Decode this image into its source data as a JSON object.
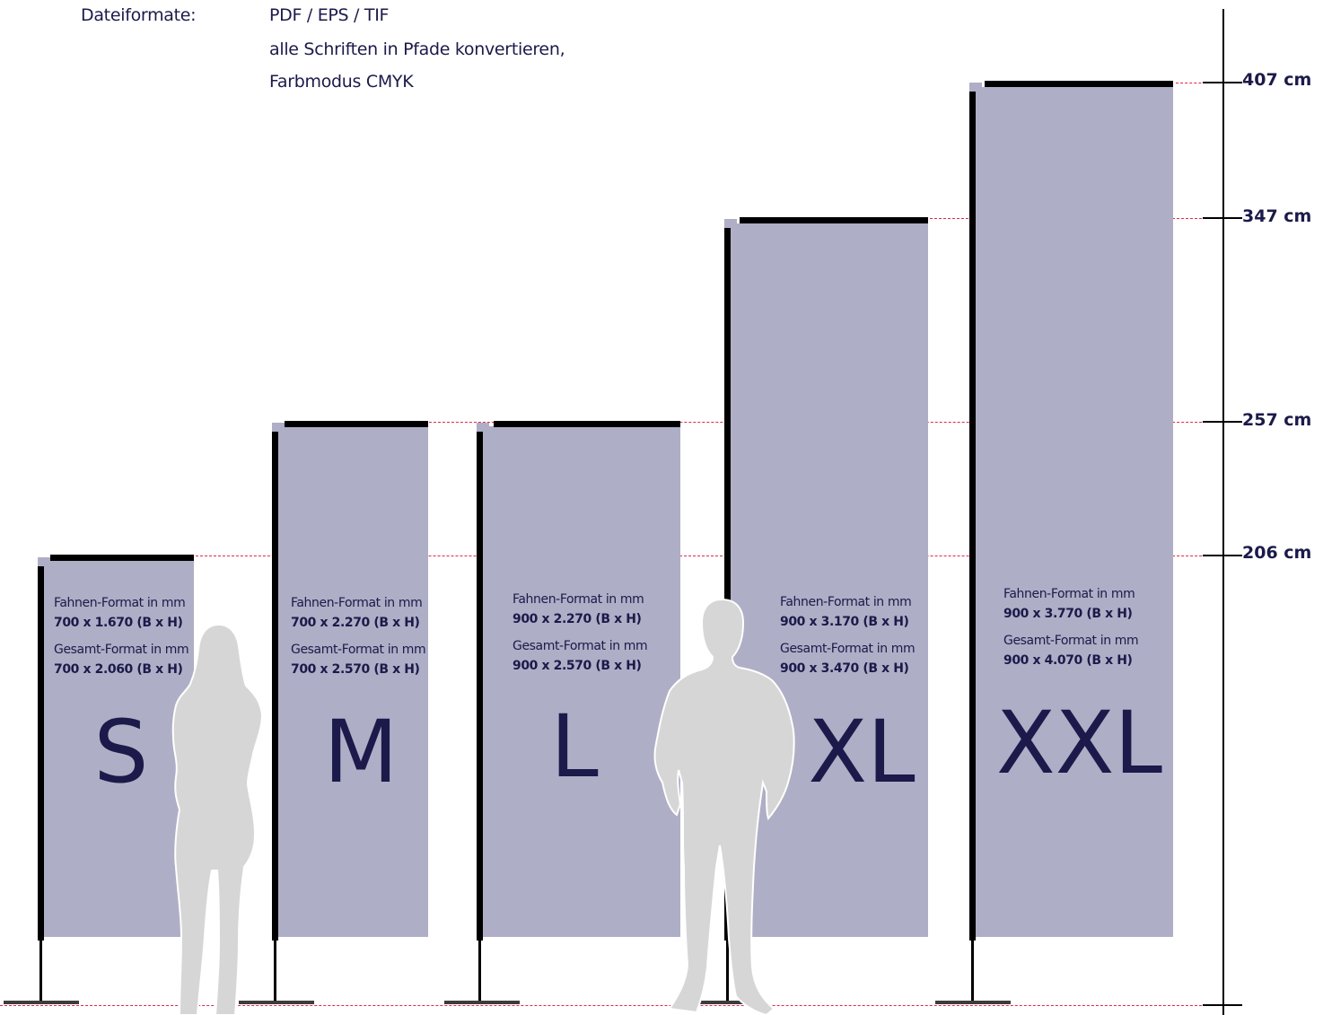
{
  "header": {
    "label": "Dateiformate:",
    "lines": [
      "PDF / EPS / TIF",
      "alle Schriften in Pfade konvertieren,",
      "Farbmodus CMYK"
    ]
  },
  "heights": [
    "407 cm",
    "347 cm",
    "257 cm",
    "206 cm"
  ],
  "flags": [
    {
      "size": "S",
      "flag_label": "Fahnen-Format in mm",
      "flag_value": "700 x 1.670 (B x H)",
      "total_label": "Gesamt-Format in mm",
      "total_value": "700 x 2.060 (B x H)"
    },
    {
      "size": "M",
      "flag_label": "Fahnen-Format in mm",
      "flag_value": "700 x 2.270 (B x H)",
      "total_label": "Gesamt-Format in mm",
      "total_value": "700 x 2.570 (B x H)"
    },
    {
      "size": "L",
      "flag_label": "Fahnen-Format in mm",
      "flag_value": "900 x 2.270 (B x H)",
      "total_label": "Gesamt-Format in mm",
      "total_value": "900 x 2.570 (B x H)"
    },
    {
      "size": "XL",
      "flag_label": "Fahnen-Format in mm",
      "flag_value": "900 x 3.170 (B x H)",
      "total_label": "Gesamt-Format in mm",
      "total_value": "900 x 3.470 (B x H)"
    },
    {
      "size": "XXL",
      "flag_label": "Fahnen-Format in mm",
      "flag_value": "900 x 3.770 (B x H)",
      "total_label": "Gesamt-Format in mm",
      "total_value": "900 x 4.070 (B x H)"
    }
  ],
  "colors": {
    "flag": "#aeaec6",
    "text": "#1b1a4a",
    "dash": "#e0284b",
    "silhouette": "#d6d6d6"
  }
}
